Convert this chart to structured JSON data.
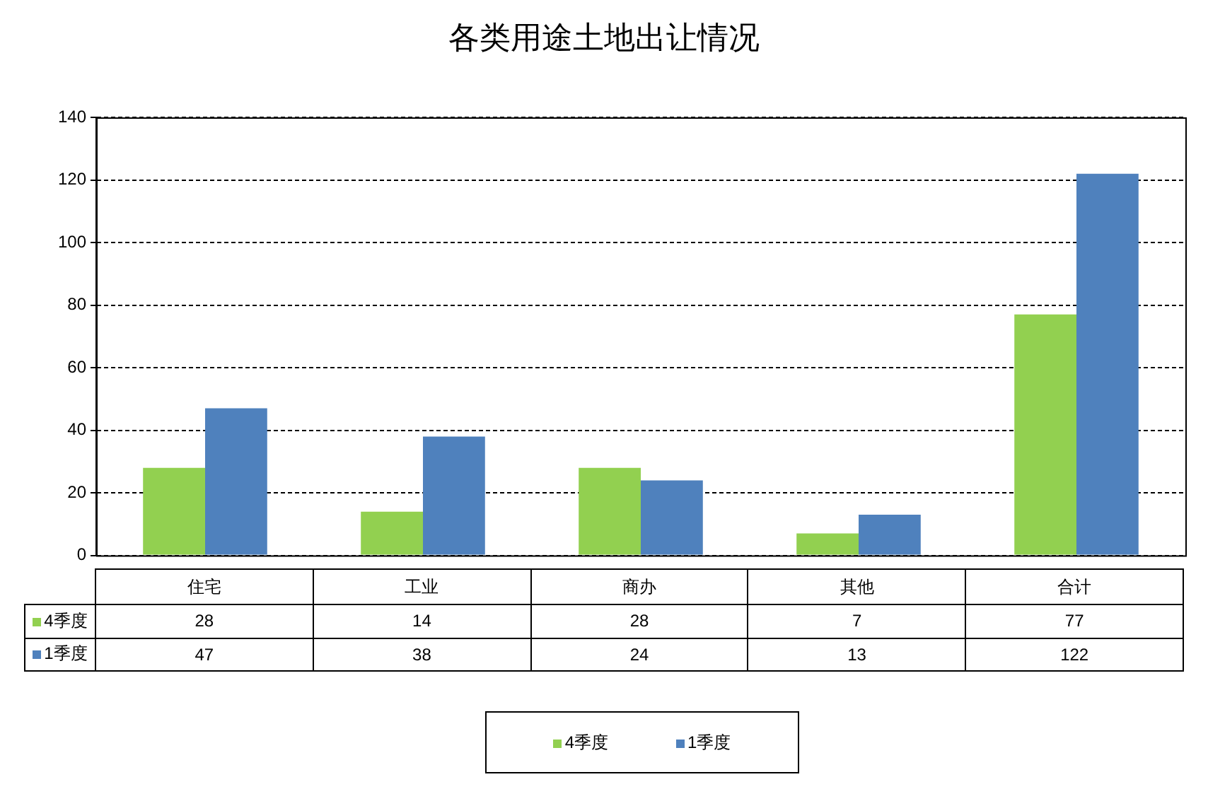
{
  "chart_data": {
    "type": "bar",
    "title": "各类用途土地出让情况",
    "categories": [
      "住宅",
      "工业",
      "商办",
      "其他",
      "合计"
    ],
    "series": [
      {
        "name": "4季度",
        "color": "#92d050",
        "values": [
          28,
          14,
          28,
          7,
          77
        ]
      },
      {
        "name": "1季度",
        "color": "#4f81bd",
        "values": [
          47,
          38,
          24,
          13,
          122
        ]
      }
    ],
    "ylim": [
      0,
      140
    ],
    "yticks": [
      0,
      20,
      40,
      60,
      80,
      100,
      120,
      140
    ],
    "grid": "y",
    "legend": "bottom",
    "data_labels": true
  }
}
